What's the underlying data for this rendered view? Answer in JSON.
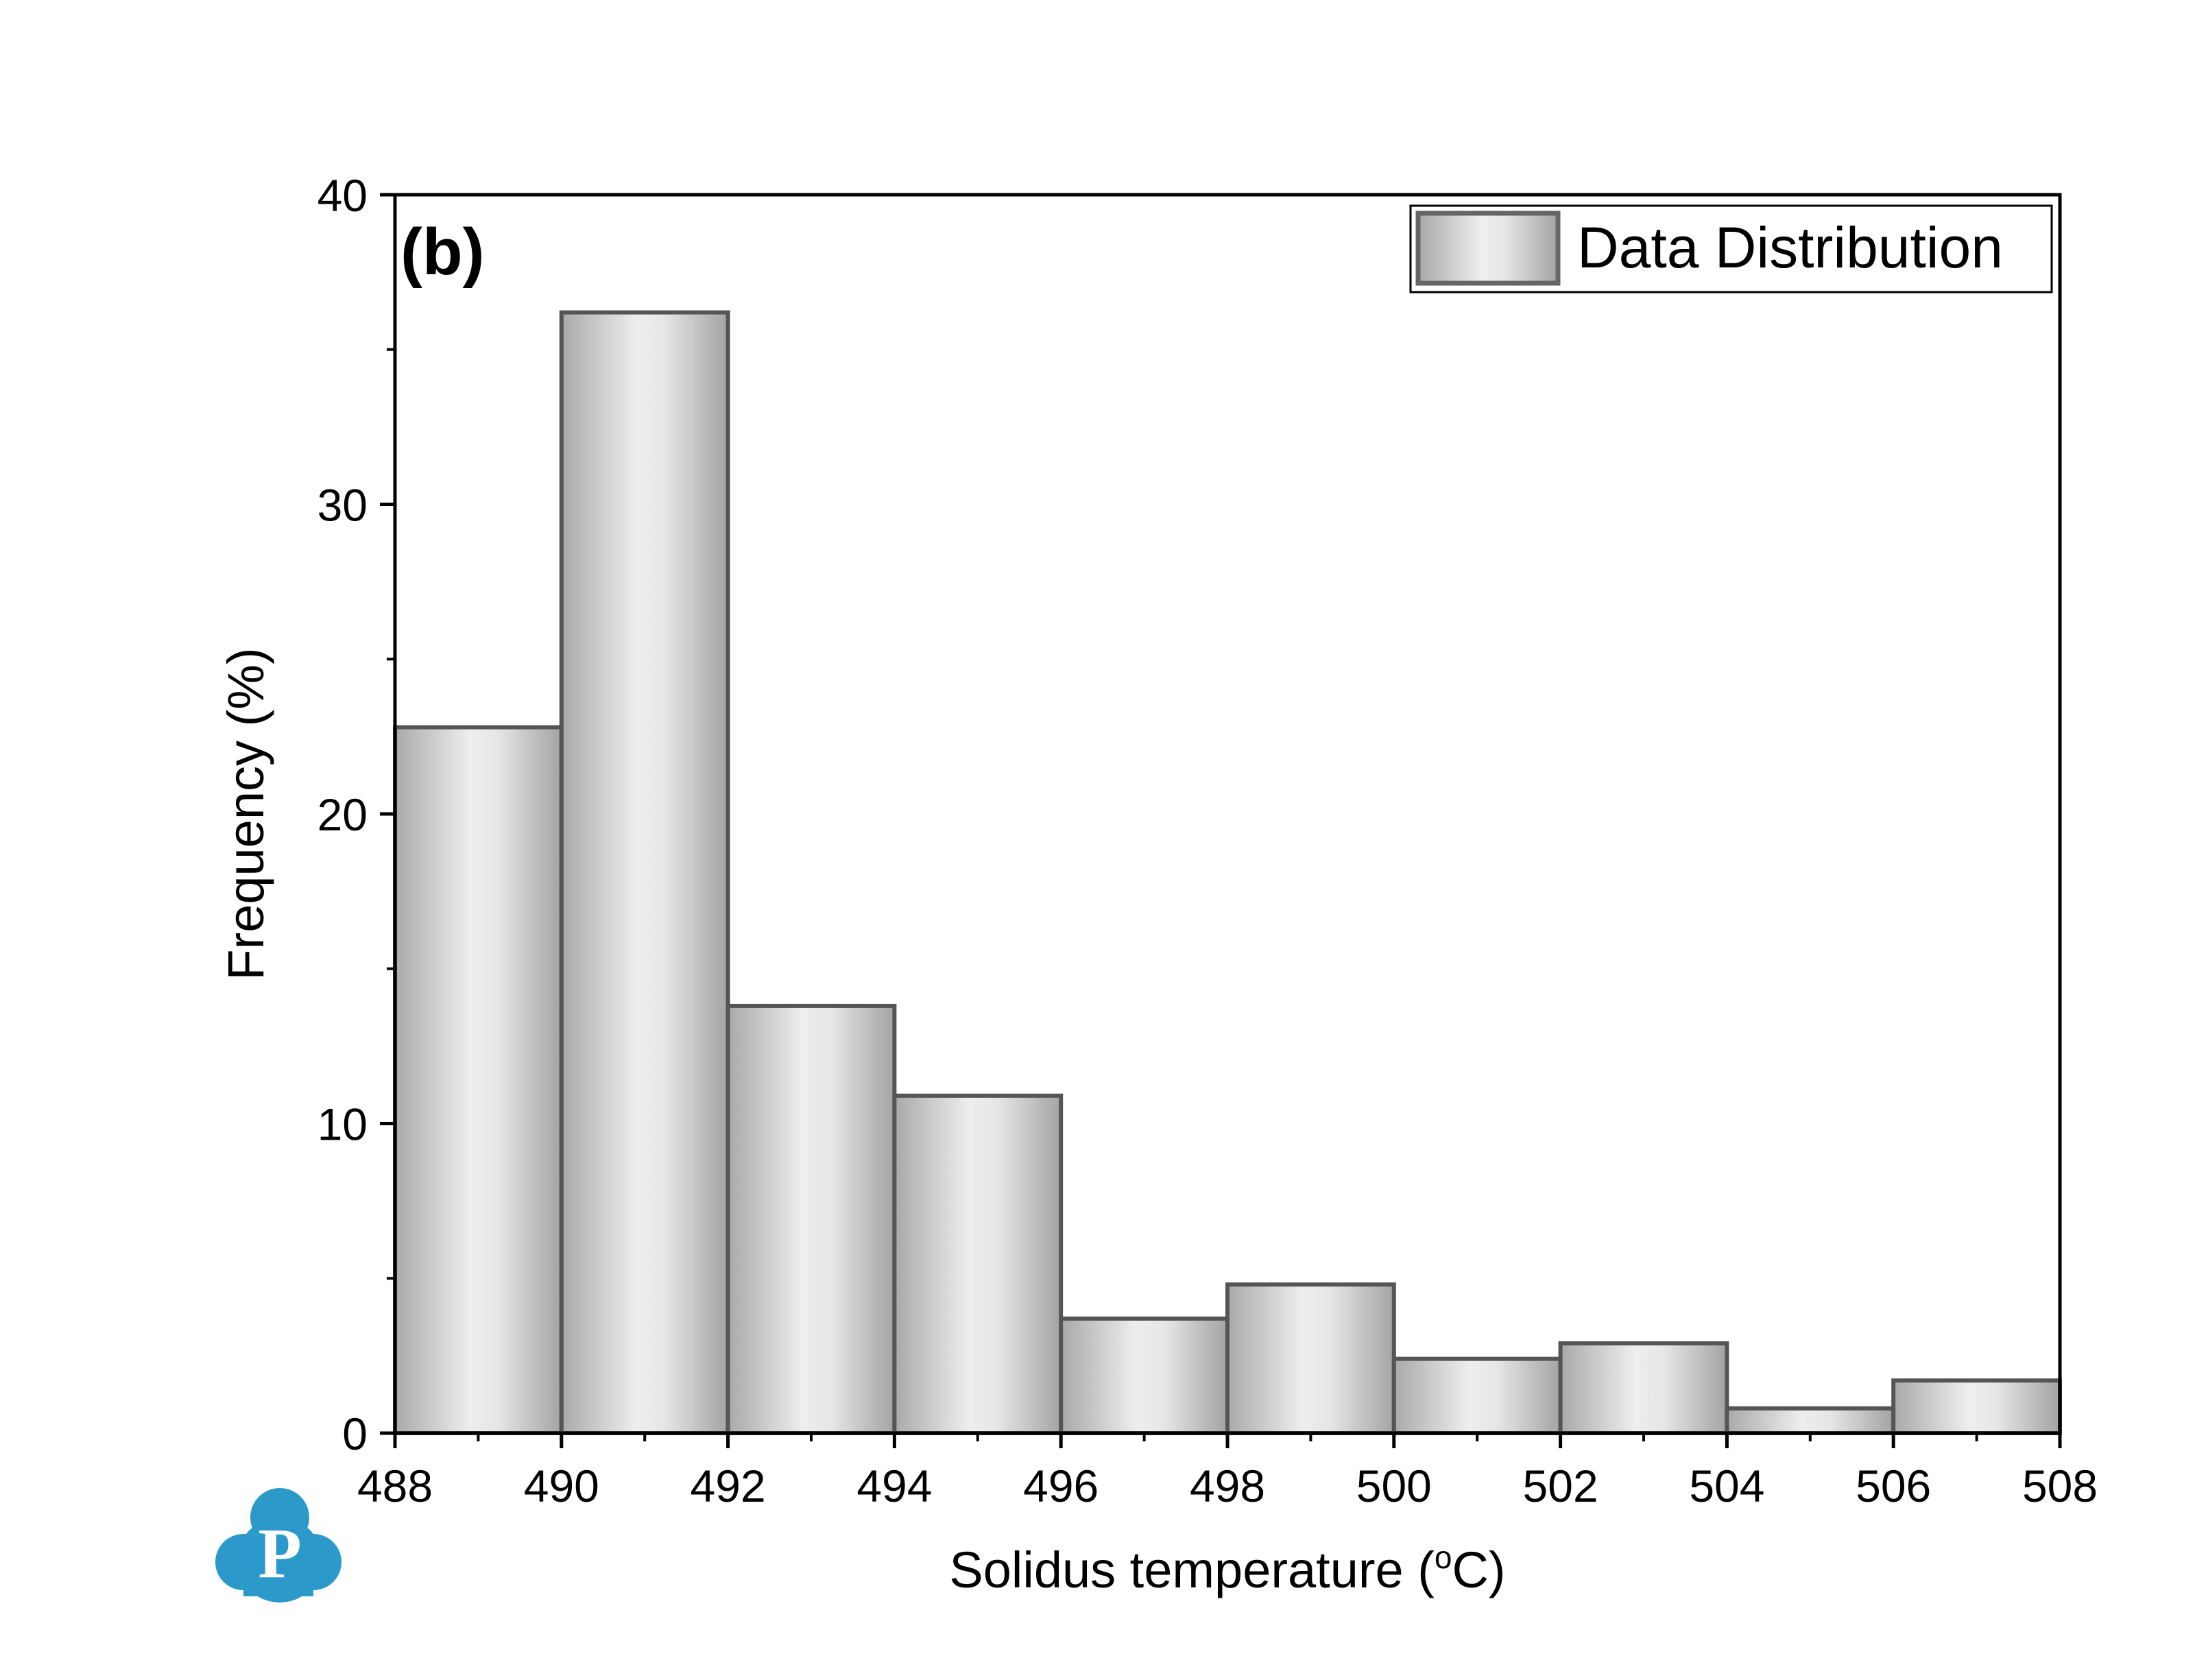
{
  "chart_data": {
    "type": "bar",
    "panel_label": "(b)",
    "xlabel_main": "Solidus temperature (",
    "xlabel_sup": "o",
    "xlabel_end": "C)",
    "ylabel": "Frequency (%)",
    "xlim": [
      488,
      508
    ],
    "ylim": [
      0,
      40
    ],
    "xticks": [
      "488",
      "490",
      "492",
      "494",
      "496",
      "498",
      "500",
      "502",
      "504",
      "506",
      "508"
    ],
    "yticks": [
      "0",
      "10",
      "20",
      "30",
      "40"
    ],
    "bin_edges": [
      488,
      490,
      492,
      494,
      496,
      498,
      500,
      502,
      504,
      506,
      508
    ],
    "values": [
      22.8,
      36.2,
      13.8,
      10.9,
      3.7,
      4.8,
      2.4,
      2.9,
      0.8,
      1.7
    ],
    "legend": {
      "label": "Data Distribution",
      "position": "top-right"
    },
    "grid": false,
    "colors": {
      "bar_edge": "#555555",
      "bar_light": "#ececec",
      "bar_dark": "#a8a8a8",
      "logo": "#2b9acb"
    }
  },
  "logo": {
    "icon": "p-cloud-logo",
    "text": "P"
  }
}
